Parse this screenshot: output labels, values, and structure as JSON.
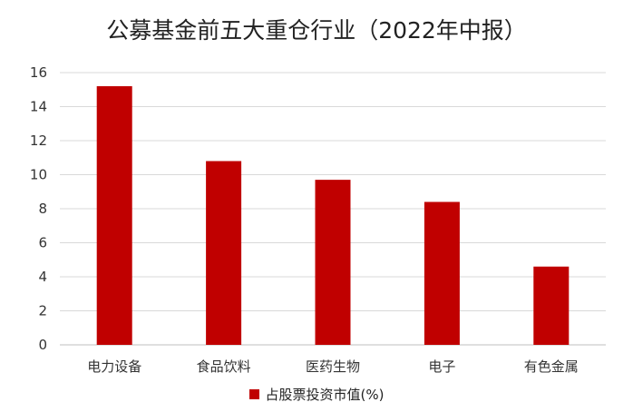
{
  "chart_data": {
    "type": "bar",
    "title": "公募基金前五大重仓行业（2022年中报）",
    "categories": [
      "电力设备",
      "食品饮料",
      "医药生物",
      "电子",
      "有色金属"
    ],
    "series": [
      {
        "name": "占股票投资市值(%)",
        "values": [
          15.2,
          10.8,
          9.7,
          8.4,
          4.6
        ],
        "color": "#c00000"
      }
    ],
    "xlabel": "",
    "ylabel": "",
    "ylim": [
      0,
      16
    ],
    "yticks": [
      0,
      2,
      4,
      6,
      8,
      10,
      12,
      14,
      16
    ],
    "grid": true,
    "legend": "bottom"
  }
}
